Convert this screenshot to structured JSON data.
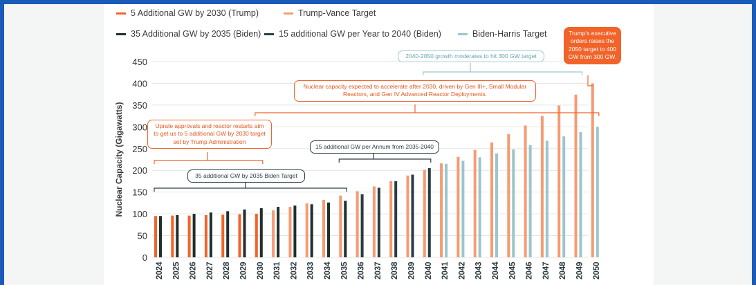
{
  "chart_data": {
    "type": "bar",
    "ylabel": "Nuclear Capacity (Gigawatts)",
    "ylim": [
      0,
      450
    ],
    "yticks": [
      0,
      50,
      100,
      150,
      200,
      250,
      300,
      350,
      400,
      450
    ],
    "grid": true,
    "legend_position": "top",
    "categories": [
      "2024",
      "2025",
      "2026",
      "2027",
      "2028",
      "2029",
      "2030",
      "2031",
      "2032",
      "2033",
      "2034",
      "2035",
      "2036",
      "2037",
      "2038",
      "2039",
      "2040",
      "2041",
      "2042",
      "2043",
      "2044",
      "2045",
      "2046",
      "2047",
      "2048",
      "2049",
      "2050"
    ],
    "series": [
      {
        "name": "5 Additional GW by 2030 (Trump)",
        "color": "#f2632a",
        "values": [
          95,
          96,
          96,
          97,
          98,
          99,
          100,
          null,
          null,
          null,
          null,
          null,
          null,
          null,
          null,
          null,
          null,
          null,
          null,
          null,
          null,
          null,
          null,
          null,
          null,
          null,
          null
        ]
      },
      {
        "name": "Trump-Vance Target",
        "color": "#f79a73",
        "values": [
          null,
          null,
          null,
          null,
          null,
          null,
          null,
          108,
          116,
          124,
          132,
          142,
          152,
          163,
          175,
          188,
          201,
          216,
          231,
          247,
          264,
          283,
          303,
          325,
          349,
          374,
          400
        ]
      },
      {
        "name": "35 Additional GW by 2035 (Biden)",
        "color": "#1f2f2b",
        "values": [
          95,
          97,
          100,
          103,
          106,
          110,
          113,
          116,
          119,
          122,
          126,
          130,
          null,
          null,
          null,
          null,
          null,
          null,
          null,
          null,
          null,
          null,
          null,
          null,
          null,
          null,
          null
        ]
      },
      {
        "name": "15 additional GW per Year to 2040 (Biden)",
        "color": "#2a3b44",
        "values": [
          null,
          null,
          null,
          null,
          null,
          null,
          null,
          null,
          null,
          null,
          null,
          null,
          145,
          160,
          175,
          190,
          205,
          null,
          null,
          null,
          null,
          null,
          null,
          null,
          null,
          null,
          null
        ]
      },
      {
        "name": "Biden-Harris Target",
        "color": "#9ac6cc",
        "values": [
          null,
          null,
          null,
          null,
          null,
          null,
          null,
          null,
          null,
          null,
          null,
          null,
          null,
          null,
          null,
          null,
          null,
          215,
          222,
          230,
          239,
          248,
          258,
          268,
          278,
          288,
          300
        ]
      }
    ]
  },
  "legend": [
    {
      "label": "5 Additional GW by 2030 (Trump)",
      "color": "#f2632a"
    },
    {
      "label": "Trump-Vance Target",
      "color": "#f79a73"
    },
    {
      "label": "35 Additional GW by 2035 (Biden)",
      "color": "#1f2f2b"
    },
    {
      "label": "15 additional GW per Year to 2040 (Biden)",
      "color": "#2a3b44"
    },
    {
      "label": "Biden-Harris Target",
      "color": "#9ac6cc"
    }
  ],
  "annotations": {
    "growth_2040_2050": "2040-2050 growth moderates to hit 300 GW target",
    "executive_orders": "Trump's executive orders raises the 2050 target to 400 GW from 300 GW.",
    "accelerate": "Nuclear capacity expected to accelerate after 2030, driven by Gen III+, Small Modular Reactors, and Gen IV Advanced Reactor Deployments.",
    "uprate": "Uprate approvals and reactor restarts aim to get us to 5 additional GW by 2030 target set by Trump Administration",
    "per_annum": "15 additional GW per Annum from 2035-2040",
    "biden_2035": "35 additional GW by 2035 Biden Target"
  }
}
